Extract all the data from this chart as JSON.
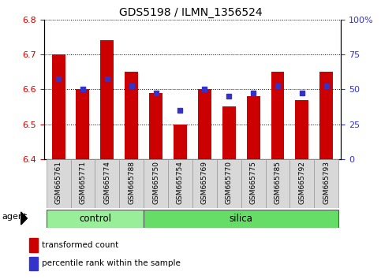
{
  "title": "GDS5198 / ILMN_1356524",
  "samples": [
    "GSM665761",
    "GSM665771",
    "GSM665774",
    "GSM665788",
    "GSM665750",
    "GSM665754",
    "GSM665769",
    "GSM665770",
    "GSM665775",
    "GSM665785",
    "GSM665792",
    "GSM665793"
  ],
  "groups": [
    "control",
    "control",
    "control",
    "control",
    "silica",
    "silica",
    "silica",
    "silica",
    "silica",
    "silica",
    "silica",
    "silica"
  ],
  "bar_values": [
    6.7,
    6.6,
    6.74,
    6.65,
    6.59,
    6.5,
    6.6,
    6.55,
    6.58,
    6.65,
    6.57,
    6.65
  ],
  "dot_values": [
    6.63,
    6.6,
    6.63,
    6.61,
    6.59,
    6.54,
    6.6,
    6.58,
    6.59,
    6.61,
    6.59,
    6.61
  ],
  "bar_base": 6.4,
  "ylim_left": [
    6.4,
    6.8
  ],
  "ylim_right": [
    0,
    100
  ],
  "yticks_left": [
    6.4,
    6.5,
    6.6,
    6.7,
    6.8
  ],
  "yticks_right": [
    0,
    25,
    50,
    75,
    100
  ],
  "ytick_right_labels": [
    "0",
    "25",
    "50",
    "75",
    "100%"
  ],
  "bar_color": "#cc0000",
  "dot_color": "#3333cc",
  "control_color": "#99ee99",
  "silica_color": "#66dd66",
  "agent_label": "agent",
  "group_label_control": "control",
  "group_label_silica": "silica",
  "legend_bar_label": "transformed count",
  "legend_dot_label": "percentile rank within the sample",
  "bar_width": 0.55,
  "dot_size": 18,
  "tick_label_color_left": "#cc0000",
  "tick_label_color_right": "#3333cc"
}
